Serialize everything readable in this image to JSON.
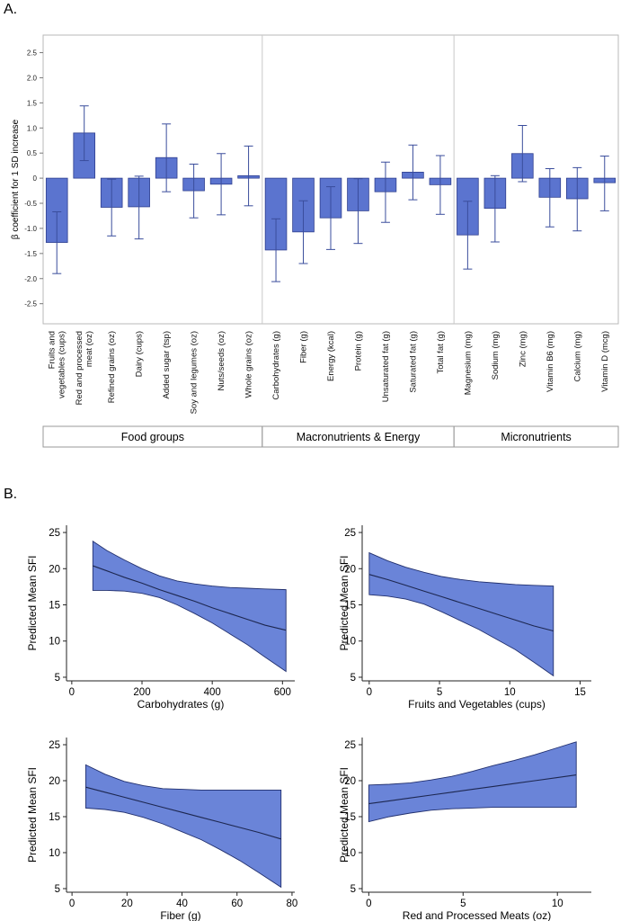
{
  "panel_labels": {
    "a": "A.",
    "b": "B."
  },
  "colors": {
    "fill": "#5b74cf",
    "band": "#6a84d8",
    "edge": "#2f3f8f",
    "axis": "#7a7a7a",
    "grid_divider": "#c8c8c8"
  },
  "chart_data": [
    {
      "type": "bar",
      "ylabel": "β coefficient for 1 SD increase",
      "ylim": [
        -2.9,
        2.85
      ],
      "yticks": [
        -2.5,
        -2.0,
        -1.5,
        -1.0,
        -0.5,
        0,
        0.5,
        1.0,
        1.5,
        2.0,
        2.5
      ],
      "ytick_labels": [
        "-2.5",
        "-2.0",
        "-1.5",
        "-1.0",
        "-0.5",
        "0",
        "0.5",
        "1.0",
        "1.5",
        "2.0",
        "2.5"
      ],
      "error_bars": true,
      "categories": [
        [
          "Fruits and",
          "vegetables (cups)"
        ],
        [
          "Red and processed",
          "meat (oz)"
        ],
        [
          "Refined grains (oz)"
        ],
        [
          "Dairy (cups)"
        ],
        [
          "Added sugar (tsp)"
        ],
        [
          "Soy and legumes (oz)"
        ],
        [
          "Nuts/seeds (oz)"
        ],
        [
          "Whole grains (oz)"
        ],
        [
          "Carbohydrates (g)"
        ],
        [
          "Fiber (g)"
        ],
        [
          "Energy (kcal)"
        ],
        [
          "Protein (g)"
        ],
        [
          "Unsaturated fat (g)"
        ],
        [
          "Saturated fat (g)"
        ],
        [
          "Total fat (g)"
        ],
        [
          "Magnesium (mg)"
        ],
        [
          "Sodium (mg)"
        ],
        [
          "Zinc (mg)"
        ],
        [
          "Vitamin B6 (mg)"
        ],
        [
          "Calcium (mg)"
        ],
        [
          "Vitamin D (mcg)"
        ]
      ],
      "values": [
        -1.28,
        0.9,
        -0.58,
        -0.57,
        0.41,
        -0.25,
        -0.12,
        0.05,
        -1.43,
        -1.07,
        -0.79,
        -0.65,
        -0.27,
        0.12,
        -0.13,
        -1.13,
        -0.6,
        0.49,
        -0.38,
        -0.41,
        -0.09
      ],
      "ci_low": [
        -1.9,
        0.35,
        -1.15,
        -1.21,
        -0.27,
        -0.79,
        -0.73,
        -0.55,
        -2.06,
        -1.7,
        -1.42,
        -1.3,
        -0.88,
        -0.43,
        -0.72,
        -1.81,
        -1.27,
        -0.07,
        -0.97,
        -1.05,
        -0.65
      ],
      "ci_high": [
        -0.67,
        1.44,
        -0.02,
        0.04,
        1.08,
        0.28,
        0.49,
        0.64,
        -0.81,
        -0.45,
        -0.17,
        -0.01,
        0.32,
        0.66,
        0.45,
        -0.46,
        0.05,
        1.05,
        0.19,
        0.21,
        0.44
      ],
      "groups": [
        {
          "name": "Food groups",
          "start": 0,
          "end": 7
        },
        {
          "name": "Macronutrients & Energy",
          "start": 8,
          "end": 14
        },
        {
          "name": "Micronutrients",
          "start": 15,
          "end": 20
        }
      ]
    },
    {
      "type": "area",
      "xlabel": "Carbohydrates (g)",
      "ylabel": "Predicted Mean SFI",
      "xlim": [
        -15,
        635
      ],
      "ylim": [
        4.5,
        26
      ],
      "xticks": [
        0,
        200,
        400,
        600
      ],
      "xtick_labels": [
        "0",
        "200",
        "400",
        "600"
      ],
      "yticks": [
        5,
        10,
        15,
        20,
        25
      ],
      "ytick_labels": [
        "5",
        "10",
        "15",
        "20",
        "25"
      ],
      "x": [
        60,
        100,
        150,
        200,
        250,
        300,
        350,
        400,
        450,
        500,
        550,
        610
      ],
      "y": [
        20.4,
        19.7,
        18.8,
        18.0,
        17.1,
        16.3,
        15.5,
        14.6,
        13.8,
        13.0,
        12.2,
        11.5
      ],
      "lower": [
        17.0,
        17.0,
        16.9,
        16.6,
        16.0,
        15.0,
        13.8,
        12.5,
        11.0,
        9.5,
        7.8,
        5.8
      ],
      "upper": [
        23.8,
        22.5,
        21.2,
        20.0,
        19.0,
        18.3,
        17.9,
        17.6,
        17.4,
        17.3,
        17.2,
        17.1
      ]
    },
    {
      "type": "area",
      "xlabel": "Fruits and Vegetables (cups)",
      "ylabel": "Predicted Mean SFI",
      "xlim": [
        -0.5,
        15.8
      ],
      "ylim": [
        4.5,
        26
      ],
      "xticks": [
        0,
        5,
        10,
        15
      ],
      "xtick_labels": [
        "0",
        "5",
        "10",
        "15"
      ],
      "yticks": [
        5,
        10,
        15,
        20,
        25
      ],
      "ytick_labels": [
        "5",
        "10",
        "15",
        "20",
        "25"
      ],
      "x": [
        0,
        1.3,
        2.6,
        3.9,
        5.2,
        6.5,
        7.8,
        9.1,
        10.4,
        11.7,
        13.1
      ],
      "y": [
        19.2,
        18.5,
        17.7,
        16.9,
        16.1,
        15.3,
        14.5,
        13.7,
        12.9,
        12.1,
        11.4
      ],
      "lower": [
        16.4,
        16.2,
        15.8,
        15.1,
        14.0,
        12.8,
        11.6,
        10.2,
        8.8,
        7.1,
        5.2
      ],
      "upper": [
        22.2,
        21.1,
        20.2,
        19.5,
        18.9,
        18.5,
        18.2,
        18.0,
        17.8,
        17.7,
        17.6
      ]
    },
    {
      "type": "area",
      "xlabel": "Fiber (g)",
      "ylabel": "Predicted Mean SFI",
      "xlim": [
        -2,
        81
      ],
      "ylim": [
        4.5,
        26
      ],
      "xticks": [
        0,
        20,
        40,
        60,
        80
      ],
      "xtick_labels": [
        "0",
        "20",
        "40",
        "60",
        "80"
      ],
      "x": [
        5,
        12,
        19,
        26,
        33,
        40,
        47,
        54,
        61,
        68,
        76
      ],
      "y": [
        19.1,
        18.4,
        17.7,
        17.0,
        16.3,
        15.6,
        14.9,
        14.2,
        13.5,
        12.8,
        11.9
      ],
      "lower": [
        16.2,
        16.0,
        15.6,
        14.9,
        14.0,
        12.9,
        11.8,
        10.4,
        8.9,
        7.2,
        5.2
      ],
      "upper": [
        22.2,
        20.9,
        19.9,
        19.3,
        18.9,
        18.8,
        18.7,
        18.7,
        18.7,
        18.7,
        18.7
      ],
      "yticks": [
        5,
        10,
        15,
        20,
        25
      ],
      "ytick_labels": [
        "5",
        "10",
        "15",
        "20",
        "25"
      ]
    },
    {
      "type": "area",
      "xlabel": "Red and Processed Meats (oz)",
      "ylabel": "Predicted Mean SFI",
      "xlim": [
        -0.35,
        11.8
      ],
      "ylim": [
        4.5,
        26
      ],
      "xticks": [
        0,
        5,
        10
      ],
      "xtick_labels": [
        "0",
        "5",
        "10"
      ],
      "yticks": [
        5,
        10,
        15,
        20,
        25
      ],
      "ytick_labels": [
        "5",
        "10",
        "15",
        "20",
        "25"
      ],
      "x": [
        0,
        1.1,
        2.2,
        3.3,
        4.4,
        5.5,
        6.6,
        7.7,
        8.8,
        9.9,
        11
      ],
      "y": [
        16.8,
        17.2,
        17.6,
        18.0,
        18.4,
        18.8,
        19.2,
        19.6,
        20.0,
        20.4,
        20.8
      ],
      "lower": [
        14.3,
        15.0,
        15.5,
        15.9,
        16.1,
        16.2,
        16.3,
        16.3,
        16.3,
        16.3,
        16.3
      ],
      "upper": [
        19.4,
        19.5,
        19.7,
        20.1,
        20.6,
        21.3,
        22.1,
        22.8,
        23.6,
        24.5,
        25.4
      ]
    }
  ]
}
